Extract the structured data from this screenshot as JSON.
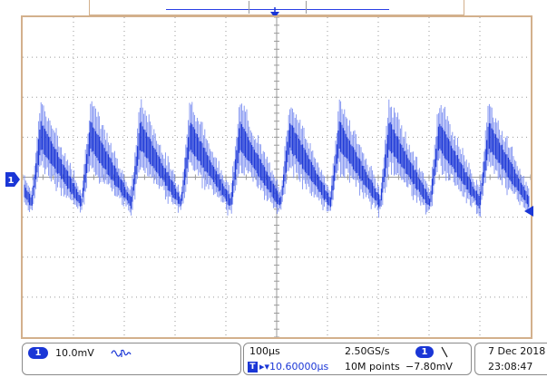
{
  "colors": {
    "trace": "#1a36d6",
    "trace_light": "#7d8ff0",
    "graticule": "#9a9a9a",
    "frame": "#d3b08c",
    "badge": "#1a36d6"
  },
  "icons": {
    "trigger_position": "trigger-position-marker-icon",
    "channel_ground": "channel-1-ground-marker-icon",
    "trigger_level": "trigger-level-marker-icon",
    "bandwidth_limit": "bandwidth-limit-icon",
    "trigger_slope": "falling-edge-slope-icon"
  },
  "graticule": {
    "divisions_x": 10,
    "divisions_y": 8,
    "minor_per_division": 5
  },
  "markers": {
    "trigger_position_label": "T",
    "channel_ground_label": "1"
  },
  "waveform": {
    "label": "1",
    "peaks": 10,
    "shape": "sawtooth with high-frequency ringing",
    "volts_per_div": "10.0mV",
    "time_per_div": "100µs"
  },
  "channel": {
    "number": "1",
    "scale": "10.0mV"
  },
  "horizontal": {
    "timebase": "100µs",
    "trigger_badge": "T",
    "delay": "▸▾10.60000µs",
    "sample_rate": "2.50GS/s",
    "record_length": "10M points"
  },
  "trigger": {
    "source": "1",
    "level": "−7.80mV"
  },
  "datetime": {
    "date": "7 Dec  2018",
    "time": "23:08:47"
  }
}
